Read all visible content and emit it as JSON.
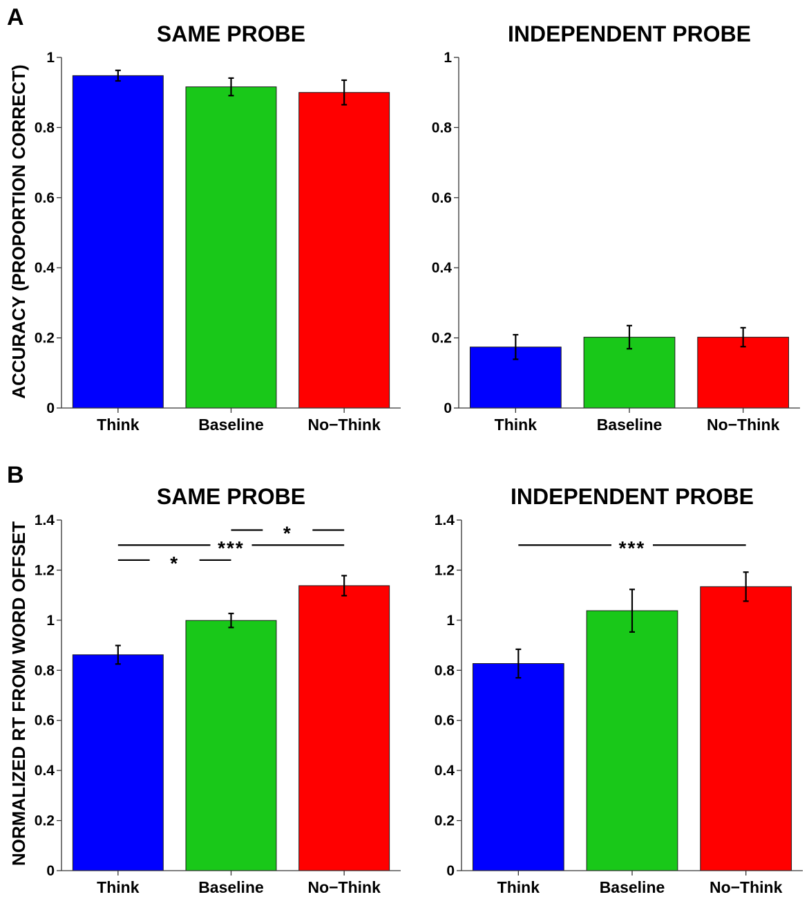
{
  "panels": [
    {
      "letter": "A",
      "ylabel": "ACCURACY (PROPORTION CORRECT)"
    },
    {
      "letter": "B",
      "ylabel": "NORMALIZED RT FROM WORD OFFSET"
    }
  ],
  "chart_data": [
    {
      "type": "bar",
      "panel": "A",
      "title": "SAME PROBE",
      "xlabel": "",
      "ylabel": "ACCURACY (PROPORTION CORRECT)",
      "categories": [
        "Think",
        "Baseline",
        "No−Think"
      ],
      "values": [
        0.948,
        0.916,
        0.9
      ],
      "errors": [
        0.015,
        0.025,
        0.035
      ],
      "colors": [
        "#0000ff",
        "#19c819",
        "#ff0000"
      ],
      "ylim": [
        0,
        1
      ],
      "yticks": [
        0,
        0.2,
        0.4,
        0.6,
        0.8,
        1
      ],
      "ytick_labels": [
        "0",
        "0.2",
        "0.4",
        "0.6",
        "0.8",
        "1"
      ],
      "significance": []
    },
    {
      "type": "bar",
      "panel": "A",
      "title": "INDEPENDENT PROBE",
      "xlabel": "",
      "ylabel": "",
      "categories": [
        "Think",
        "Baseline",
        "No−Think"
      ],
      "values": [
        0.174,
        0.202,
        0.202
      ],
      "errors": [
        0.035,
        0.033,
        0.027
      ],
      "colors": [
        "#0000ff",
        "#19c819",
        "#ff0000"
      ],
      "ylim": [
        0,
        1
      ],
      "yticks": [
        0,
        0.2,
        0.4,
        0.6,
        0.8,
        1
      ],
      "ytick_labels": [
        "0",
        "0.2",
        "0.4",
        "0.6",
        "0.8",
        "1"
      ],
      "significance": []
    },
    {
      "type": "bar",
      "panel": "B",
      "title": "SAME PROBE",
      "xlabel": "",
      "ylabel": "NORMALIZED RT FROM WORD OFFSET",
      "categories": [
        "Think",
        "Baseline",
        "No−Think"
      ],
      "values": [
        0.862,
        0.999,
        1.138
      ],
      "errors": [
        0.037,
        0.028,
        0.04
      ],
      "colors": [
        "#0000ff",
        "#19c819",
        "#ff0000"
      ],
      "ylim": [
        0,
        1.4
      ],
      "yticks": [
        0,
        0.2,
        0.4,
        0.6,
        0.8,
        1,
        1.2,
        1.4
      ],
      "ytick_labels": [
        "0",
        "0.2",
        "0.4",
        "0.6",
        "0.8",
        "1",
        "1.2",
        "1.4"
      ],
      "significance": [
        {
          "from": 1,
          "to": 2,
          "y": 1.36,
          "label": "*"
        },
        {
          "from": 0,
          "to": 2,
          "y": 1.3,
          "label": "***"
        },
        {
          "from": 0,
          "to": 1,
          "y": 1.24,
          "label": "*"
        }
      ]
    },
    {
      "type": "bar",
      "panel": "B",
      "title": "INDEPENDENT PROBE",
      "xlabel": "",
      "ylabel": "",
      "categories": [
        "Think",
        "Baseline",
        "No−Think"
      ],
      "values": [
        0.827,
        1.038,
        1.134
      ],
      "errors": [
        0.057,
        0.085,
        0.058
      ],
      "colors": [
        "#0000ff",
        "#19c819",
        "#ff0000"
      ],
      "ylim": [
        0,
        1.4
      ],
      "yticks": [
        0,
        0.2,
        0.4,
        0.6,
        0.8,
        1,
        1.2,
        1.4
      ],
      "ytick_labels": [
        "0",
        "0.2",
        "0.4",
        "0.6",
        "0.8",
        "1",
        "1.2",
        "1.4"
      ],
      "significance": [
        {
          "from": 0,
          "to": 2,
          "y": 1.3,
          "label": "***"
        }
      ]
    }
  ]
}
